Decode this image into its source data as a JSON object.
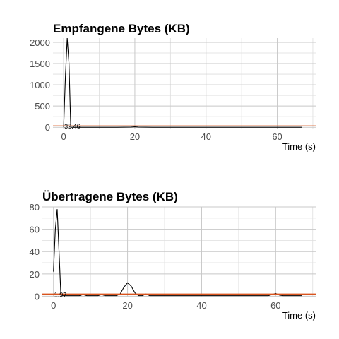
{
  "chart_data": [
    {
      "type": "line",
      "title": "Empfangene Bytes (KB)",
      "xlabel": "Time (s)",
      "ylabel": "",
      "xlim": [
        -3,
        71
      ],
      "ylim": [
        -30,
        2100
      ],
      "xticks": [
        0,
        20,
        40,
        60
      ],
      "yticks": [
        0,
        500,
        1000,
        1500,
        2000
      ],
      "grid": true,
      "series": [
        {
          "color": "#000000",
          "x": [
            0,
            0.5,
            1,
            1.5,
            2,
            3,
            5,
            10,
            15,
            19,
            20,
            21,
            25,
            30,
            40,
            50,
            60,
            67
          ],
          "values": [
            0,
            1200,
            2100,
            1500,
            0,
            0,
            0,
            0,
            0,
            5,
            10,
            5,
            0,
            0,
            0,
            0,
            0,
            0
          ]
        }
      ],
      "hline": {
        "value": 32.46,
        "color": "#d9541e"
      },
      "annotation": "32.46"
    },
    {
      "type": "line",
      "title": "Übertragene Bytes (KB)",
      "xlabel": "Time (s)",
      "ylabel": "",
      "xlim": [
        -3,
        71
      ],
      "ylim": [
        -1,
        80
      ],
      "xticks": [
        0,
        20,
        40,
        60
      ],
      "yticks": [
        0,
        20,
        40,
        60,
        80
      ],
      "grid": true,
      "series": [
        {
          "color": "#000000",
          "x": [
            0,
            0.5,
            1,
            1.5,
            2,
            3,
            5,
            7,
            8,
            9,
            10,
            12,
            13,
            14,
            15,
            17,
            18,
            19,
            20,
            21,
            22,
            23,
            24,
            25,
            26,
            30,
            40,
            50,
            58,
            59,
            60,
            61,
            62,
            67
          ],
          "values": [
            22,
            60,
            78,
            40,
            1,
            0.5,
            0.5,
            0.5,
            1.5,
            0.5,
            0.5,
            0.5,
            1.5,
            0.5,
            0.5,
            0.5,
            2,
            8,
            12,
            9,
            3,
            0.5,
            0.5,
            2,
            0.5,
            0.5,
            0.5,
            0.5,
            0.5,
            1.5,
            2.5,
            1,
            0.5,
            0.5
          ]
        }
      ],
      "hline": {
        "value": 1.97,
        "color": "#d9541e"
      },
      "annotation": "1.97"
    }
  ]
}
